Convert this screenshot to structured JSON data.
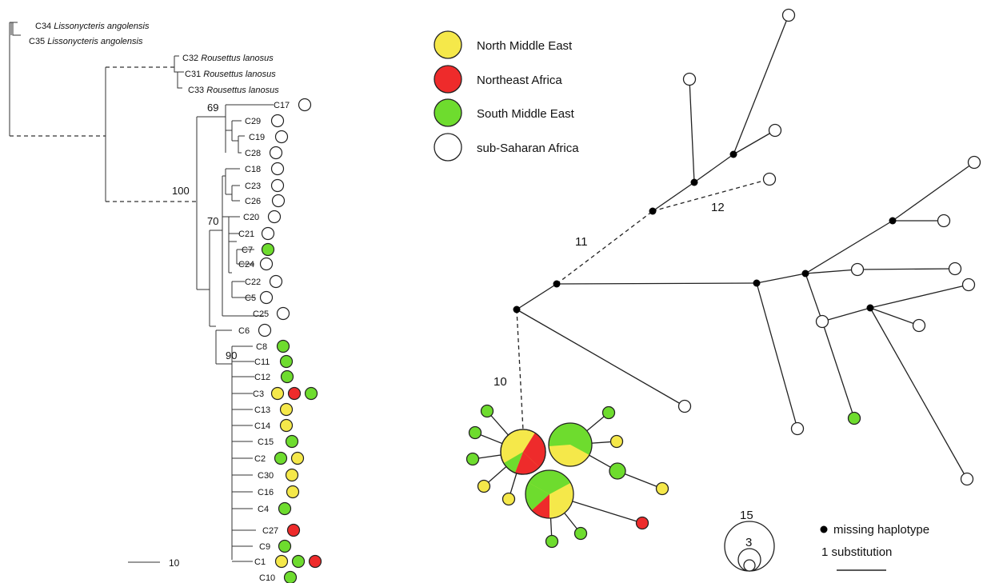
{
  "colors": {
    "north_middle_east": "#f5e84a",
    "northeast_africa": "#ee2b2b",
    "south_middle_east": "#6edc2e",
    "sub_saharan_africa": "#ffffff"
  },
  "tree": {
    "outgroups": [
      {
        "code": "C34",
        "species": "Lissonycteris angolensis"
      },
      {
        "code": "C35",
        "species": "Lissonycteris angolensis"
      },
      {
        "code": "C32",
        "species": "Rousettus lanosus"
      },
      {
        "code": "C31",
        "species": "Rousettus lanosus"
      },
      {
        "code": "C33",
        "species": "Rousettus lanosus"
      }
    ],
    "tips": [
      "C17",
      "C29",
      "C19",
      "C28",
      "C18",
      "C23",
      "C26",
      "C20",
      "C21",
      "C7",
      "C24",
      "C22",
      "C5",
      "C25",
      "C6",
      "C8",
      "C11",
      "C12",
      "C3",
      "C13",
      "C14",
      "C15",
      "C2",
      "C30",
      "C16",
      "C4",
      "C27",
      "C9",
      "C1",
      "C10"
    ],
    "bootstrap": [
      "69",
      "100",
      "70",
      "90"
    ],
    "scale_label": "10"
  },
  "legend": {
    "north_middle_east": "North Middle East",
    "northeast_africa": "Northeast Africa",
    "south_middle_east": "South Middle East",
    "sub_saharan_africa": "sub-Saharan Africa"
  },
  "network": {
    "dashed_labels": [
      "10",
      "11",
      "12"
    ],
    "size_large": "15",
    "size_small": "3",
    "missing_label": "missing haplotype",
    "substitution_label": "1 substitution"
  }
}
